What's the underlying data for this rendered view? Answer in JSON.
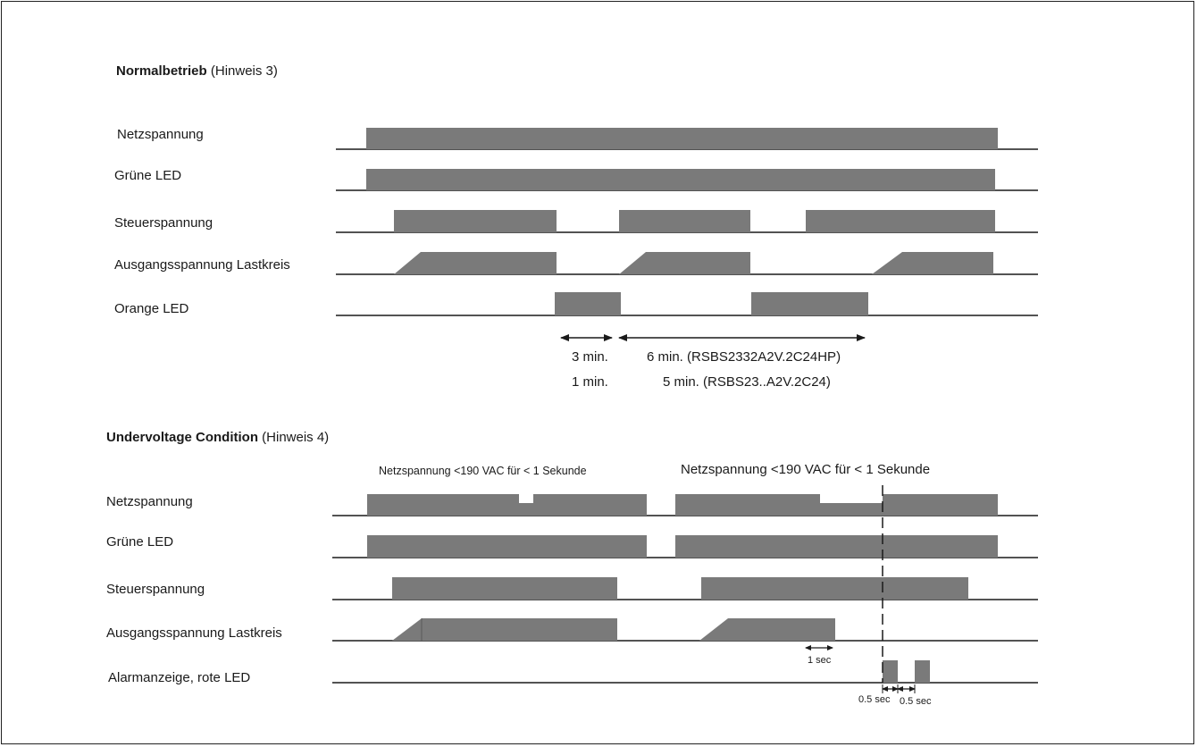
{
  "section1": {
    "title_bold": "Normalbetrieb",
    "title_note": " (Hinweis 3)",
    "rows": [
      "Netzspannung",
      "Grüne LED",
      "Steuerspannung",
      "Ausgangsspannung Lastkreis",
      "Orange LED"
    ],
    "timing": {
      "a": "3 min.",
      "b": "1 min.",
      "c": "6 min. (RSBS2332A2V.2C24HP)",
      "d": "5 min. (RSBS23..A2V.2C24)"
    }
  },
  "section2": {
    "title_bold": "Undervoltage Condition",
    "title_note": " (Hinweis 4)",
    "note_left": "Netzspannung <190 VAC für < 1 Sekunde",
    "note_right": "Netzspannung <190 VAC für < 1 Sekunde",
    "rows": [
      "Netzspannung",
      "Grüne LED",
      "Steuerspannung",
      "Ausgangsspannung Lastkreis",
      "Alarmanzeige, rote LED"
    ],
    "timing": {
      "one_sec": "1 sec",
      "half_sec_a": "0.5 sec",
      "half_sec_b": "0.5 sec"
    }
  },
  "colors": {
    "bar": "#7a7a7a",
    "line": "#1a1a1a"
  }
}
